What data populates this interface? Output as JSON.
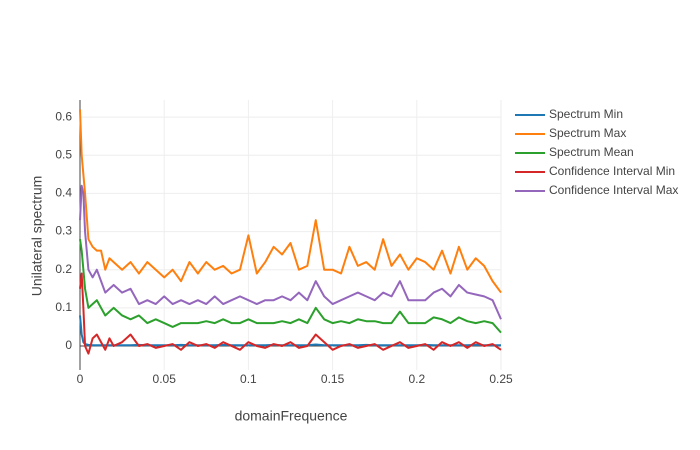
{
  "chart_data": {
    "type": "line",
    "xlabel": "domainFrequence",
    "ylabel": "Unilateral spectrum",
    "x": [
      0,
      0.001,
      0.002,
      0.003,
      0.005,
      0.0075,
      0.01,
      0.0125,
      0.015,
      0.0175,
      0.02,
      0.025,
      0.03,
      0.035,
      0.04,
      0.045,
      0.05,
      0.055,
      0.06,
      0.065,
      0.07,
      0.075,
      0.08,
      0.085,
      0.09,
      0.095,
      0.1,
      0.105,
      0.11,
      0.115,
      0.12,
      0.125,
      0.13,
      0.135,
      0.14,
      0.145,
      0.15,
      0.155,
      0.16,
      0.165,
      0.17,
      0.175,
      0.18,
      0.185,
      0.19,
      0.195,
      0.2,
      0.205,
      0.21,
      0.215,
      0.22,
      0.225,
      0.23,
      0.235,
      0.24,
      0.245,
      0.25
    ],
    "series": [
      {
        "name": "Spectrum Min",
        "color": "#1f77b4",
        "values": [
          0.08,
          0.03,
          0.01,
          0.005,
          0.003,
          0.002,
          0.002,
          0.002,
          0.002,
          0.002,
          0.002,
          0.002,
          0.002,
          0.003,
          0.002,
          0.002,
          0.002,
          0.002,
          0.003,
          0.002,
          0.002,
          0.002,
          0.002,
          0.003,
          0.002,
          0.002,
          0.002,
          0.002,
          0.002,
          0.003,
          0.002,
          0.002,
          0.002,
          0.002,
          0.004,
          0.002,
          0.002,
          0.002,
          0.002,
          0.002,
          0.003,
          0.002,
          0.002,
          0.002,
          0.002,
          0.002,
          0.002,
          0.003,
          0.002,
          0.002,
          0.002,
          0.002,
          0.002,
          0.003,
          0.002,
          0.002,
          0.002
        ]
      },
      {
        "name": "Spectrum Max",
        "color": "#ff7f0e",
        "values": [
          0.62,
          0.5,
          0.45,
          0.4,
          0.28,
          0.26,
          0.25,
          0.25,
          0.2,
          0.23,
          0.22,
          0.2,
          0.22,
          0.19,
          0.22,
          0.2,
          0.18,
          0.2,
          0.17,
          0.22,
          0.19,
          0.22,
          0.2,
          0.21,
          0.19,
          0.2,
          0.29,
          0.19,
          0.22,
          0.26,
          0.24,
          0.27,
          0.2,
          0.21,
          0.33,
          0.2,
          0.2,
          0.19,
          0.26,
          0.21,
          0.22,
          0.2,
          0.28,
          0.21,
          0.24,
          0.2,
          0.23,
          0.22,
          0.2,
          0.25,
          0.19,
          0.26,
          0.2,
          0.23,
          0.21,
          0.17,
          0.14
        ]
      },
      {
        "name": "Spectrum Mean",
        "color": "#2ca02c",
        "values": [
          0.28,
          0.25,
          0.2,
          0.15,
          0.1,
          0.11,
          0.12,
          0.1,
          0.08,
          0.09,
          0.1,
          0.08,
          0.07,
          0.08,
          0.06,
          0.07,
          0.06,
          0.05,
          0.06,
          0.06,
          0.06,
          0.065,
          0.06,
          0.07,
          0.06,
          0.06,
          0.07,
          0.06,
          0.06,
          0.06,
          0.065,
          0.06,
          0.07,
          0.06,
          0.1,
          0.07,
          0.06,
          0.065,
          0.06,
          0.07,
          0.065,
          0.065,
          0.06,
          0.06,
          0.09,
          0.06,
          0.06,
          0.06,
          0.075,
          0.07,
          0.06,
          0.075,
          0.065,
          0.06,
          0.065,
          0.06,
          0.035
        ]
      },
      {
        "name": "Confidence Interval Min",
        "color": "#d62728",
        "values": [
          0.15,
          0.19,
          0.1,
          0,
          -0.02,
          0.02,
          0.03,
          0.01,
          -0.01,
          0.02,
          0,
          0.01,
          0.03,
          0,
          0.005,
          -0.005,
          0,
          0.005,
          -0.01,
          0.01,
          0,
          0.005,
          -0.005,
          0.01,
          0,
          -0.01,
          0.01,
          0,
          -0.005,
          0.005,
          0,
          0.01,
          -0.005,
          0,
          0.03,
          0.01,
          -0.01,
          0,
          0.005,
          -0.005,
          0,
          0.005,
          -0.01,
          0,
          0.01,
          -0.005,
          0,
          0.005,
          -0.01,
          0.01,
          0,
          0.01,
          -0.005,
          0.01,
          0,
          0.005,
          -0.01
        ]
      },
      {
        "name": "Confidence Interval Max",
        "color": "#9467bd",
        "values": [
          0.33,
          0.42,
          0.4,
          0.3,
          0.2,
          0.18,
          0.2,
          0.17,
          0.14,
          0.15,
          0.16,
          0.14,
          0.15,
          0.11,
          0.12,
          0.11,
          0.13,
          0.11,
          0.12,
          0.11,
          0.12,
          0.11,
          0.13,
          0.11,
          0.12,
          0.13,
          0.12,
          0.11,
          0.12,
          0.12,
          0.13,
          0.12,
          0.14,
          0.12,
          0.17,
          0.13,
          0.11,
          0.12,
          0.13,
          0.14,
          0.13,
          0.12,
          0.14,
          0.13,
          0.17,
          0.12,
          0.12,
          0.12,
          0.14,
          0.15,
          0.13,
          0.16,
          0.14,
          0.135,
          0.13,
          0.12,
          0.07
        ]
      }
    ],
    "xlim": [
      0,
      0.25
    ],
    "xticks": [
      0,
      0.05,
      0.1,
      0.15,
      0.2,
      0.25
    ],
    "ylim": [
      -0.063,
      0.645
    ],
    "yticks": [
      0,
      0.1,
      0.2,
      0.3,
      0.4,
      0.5,
      0.6
    ],
    "grid": true,
    "legend": "right"
  }
}
